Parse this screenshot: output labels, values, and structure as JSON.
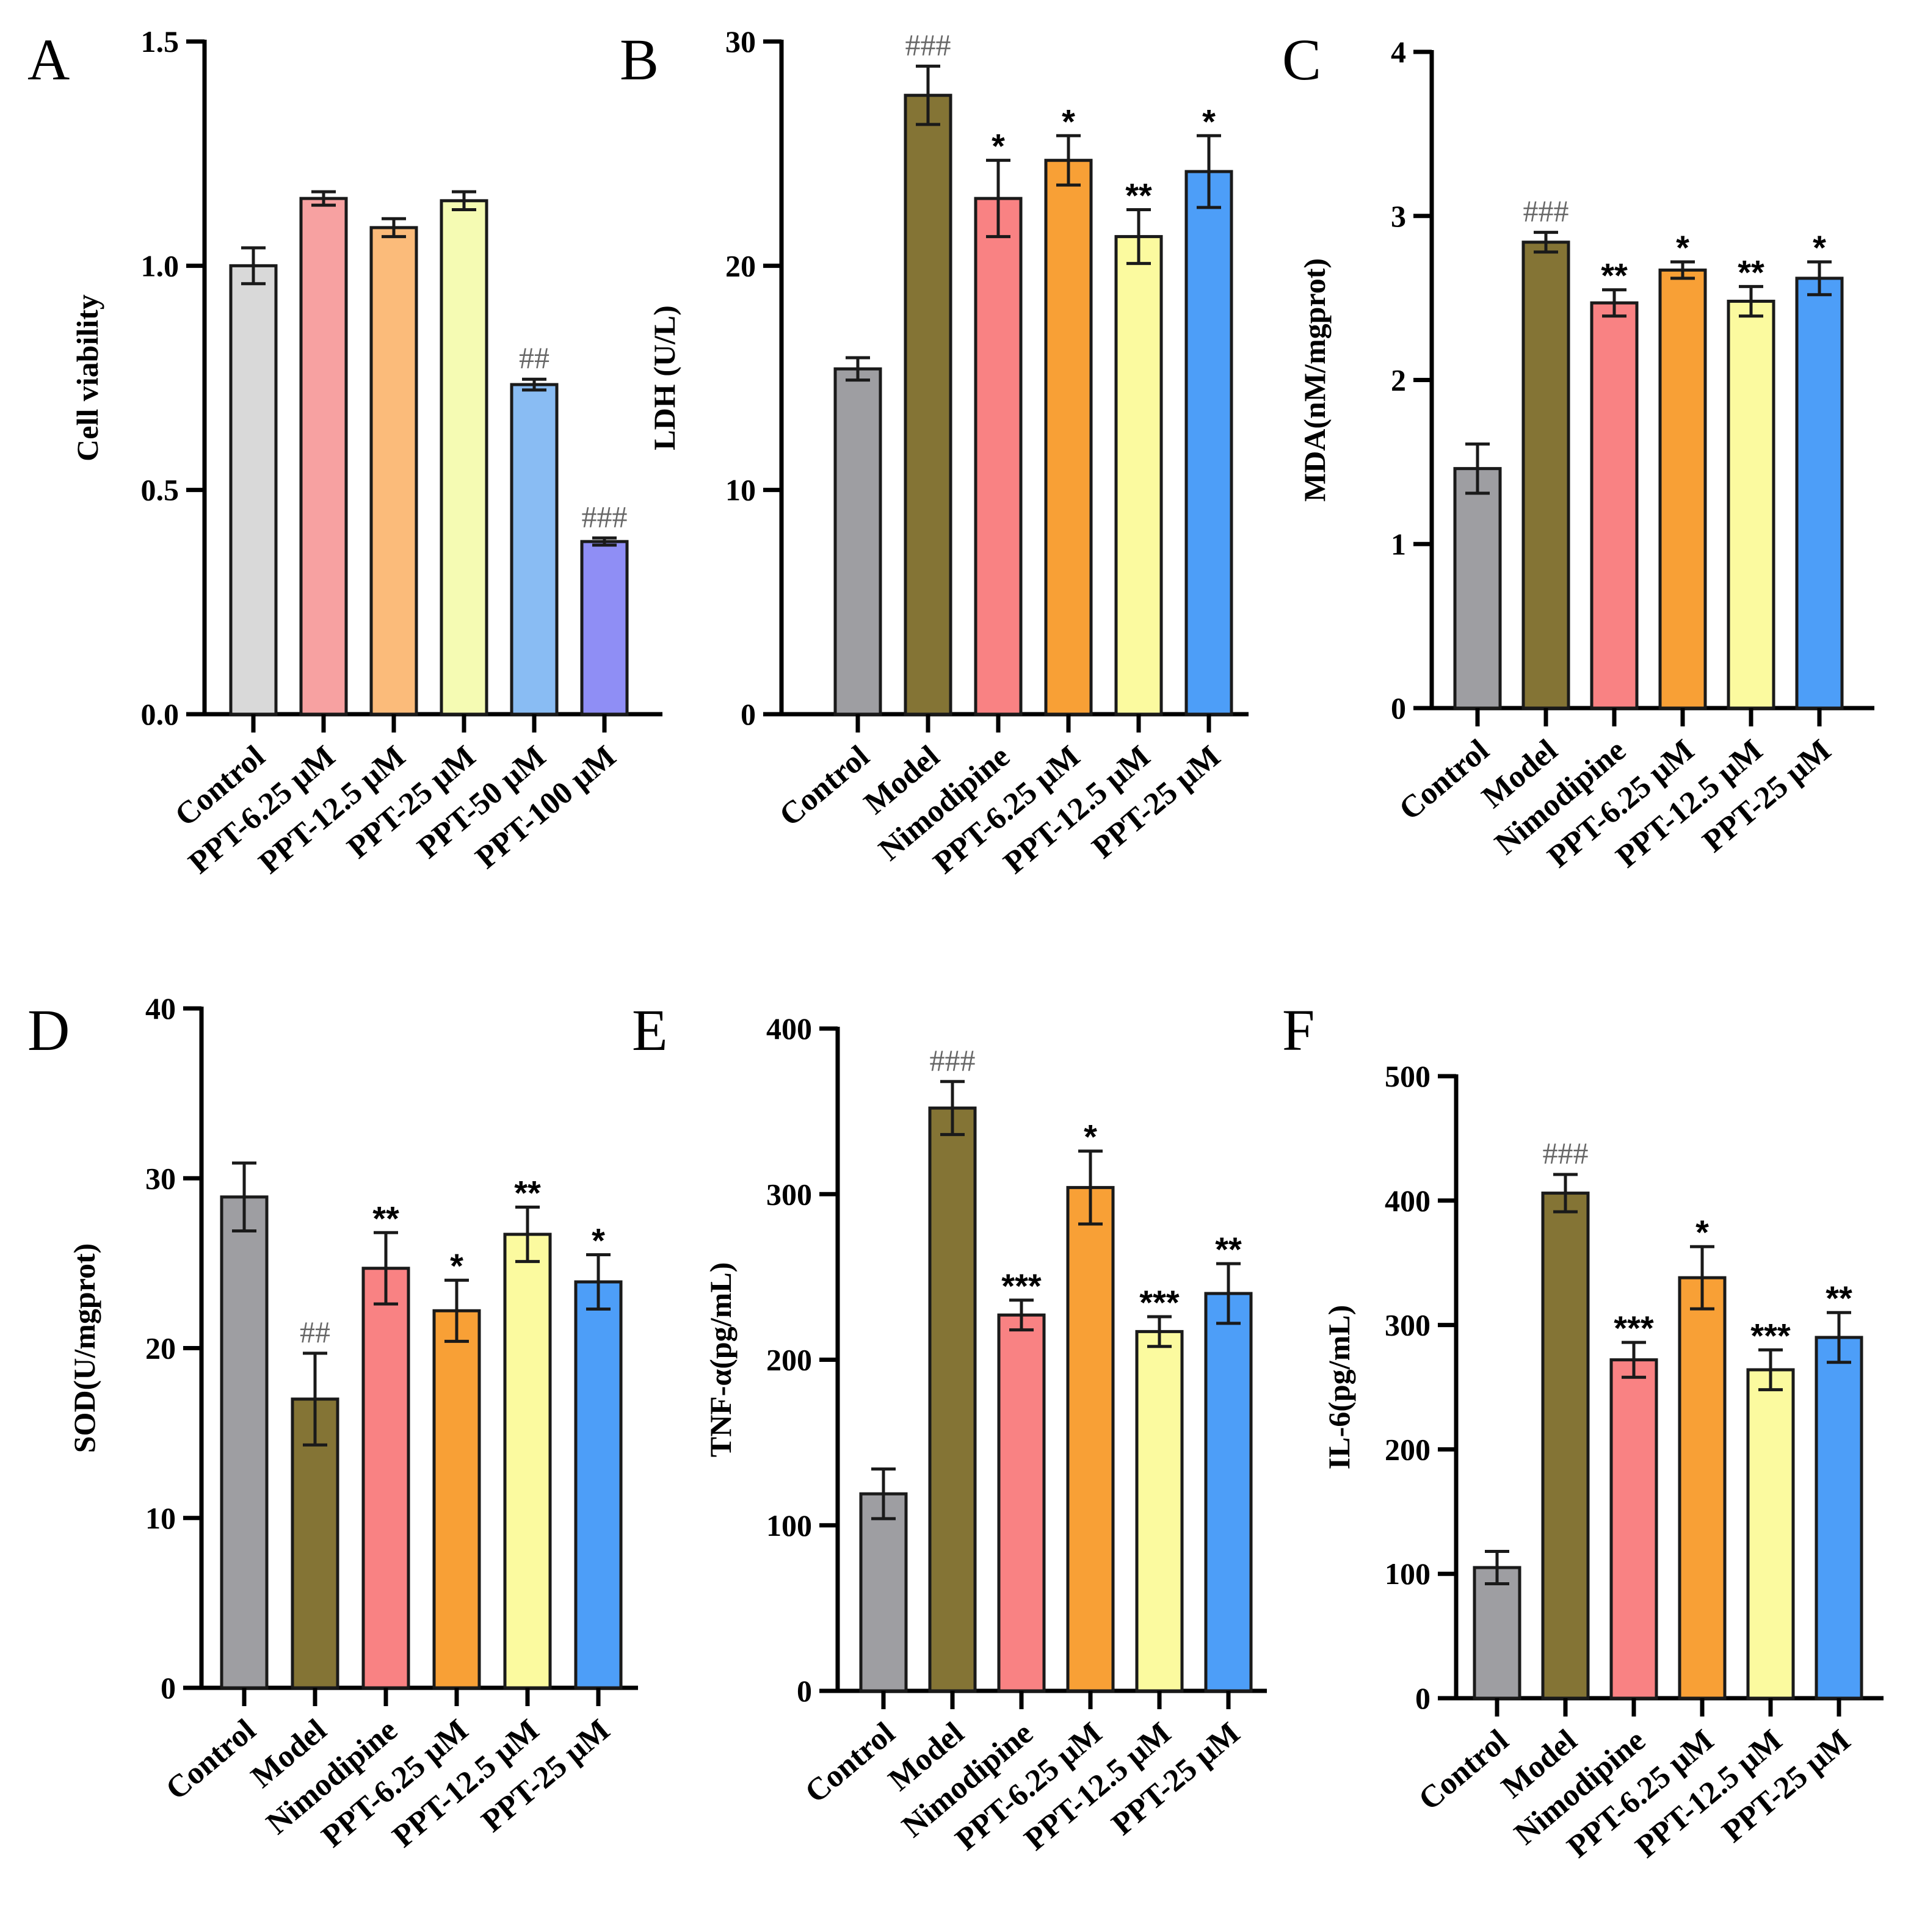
{
  "chart_data": [
    {
      "panel": "A",
      "type": "bar",
      "ylabel": "Cell viability",
      "ylim": [
        0,
        1.5
      ],
      "yticks": [
        "0.0",
        "0.5",
        "1.0",
        "1.5"
      ],
      "categories": [
        "Control",
        "PPT-6.25 μM",
        "PPT-12.5 μM",
        "PPT-25 μM",
        "PPT-50 μM",
        "PPT-100 μM"
      ],
      "values": [
        1.0,
        1.15,
        1.085,
        1.145,
        0.735,
        0.385
      ],
      "errors": [
        0.04,
        0.015,
        0.02,
        0.02,
        0.012,
        0.008
      ],
      "colors": [
        "#d9d9d9",
        "#f7a1a1",
        "#fbbb7a",
        "#f5fbb3",
        "#89bcf3",
        "#8f8ef5"
      ],
      "significance": [
        "",
        "",
        "",
        "",
        "##",
        "###"
      ]
    },
    {
      "panel": "B",
      "type": "bar",
      "ylabel": "LDH (U/L)",
      "ylim": [
        0,
        30
      ],
      "yticks": [
        "0",
        "10",
        "20",
        "30"
      ],
      "categories": [
        "Control",
        "Model",
        "Nimodipine",
        "PPT-6.25 μM",
        "PPT-12.5 μM",
        "PPT-25 μM"
      ],
      "values": [
        15.4,
        27.6,
        23.0,
        24.7,
        21.3,
        24.2
      ],
      "errors": [
        0.5,
        1.3,
        1.7,
        1.1,
        1.2,
        1.6
      ],
      "colors": [
        "#9e9ea2",
        "#847435",
        "#f98283",
        "#f8a036",
        "#fbfa9f",
        "#4d9ef8"
      ],
      "significance": [
        "",
        "###",
        "*",
        "*",
        "**",
        "*"
      ]
    },
    {
      "panel": "C",
      "type": "bar",
      "ylabel": "MDA(nM/mgprot)",
      "ylim": [
        0,
        4
      ],
      "yticks": [
        "0",
        "1",
        "2",
        "3",
        "4"
      ],
      "categories": [
        "Control",
        "Model",
        "Nimodipine",
        "PPT-6.25 μM",
        "PPT-12.5 μM",
        "PPT-25 μM"
      ],
      "values": [
        1.46,
        2.84,
        2.47,
        2.67,
        2.48,
        2.62
      ],
      "errors": [
        0.15,
        0.06,
        0.08,
        0.05,
        0.09,
        0.1
      ],
      "colors": [
        "#9e9ea2",
        "#847435",
        "#f98283",
        "#f8a036",
        "#fbfa9f",
        "#4d9ef8"
      ],
      "significance": [
        "",
        "###",
        "**",
        "*",
        "**",
        "*"
      ]
    },
    {
      "panel": "D",
      "type": "bar",
      "ylabel": "SOD(U/mgprot)",
      "ylim": [
        0,
        40
      ],
      "yticks": [
        "0",
        "10",
        "20",
        "30",
        "40"
      ],
      "categories": [
        "Control",
        "Model",
        "Nimodipine",
        "PPT-6.25 μM",
        "PPT-12.5 μM",
        "PPT-25 μM"
      ],
      "values": [
        28.9,
        17.0,
        24.7,
        22.2,
        26.7,
        23.9
      ],
      "errors": [
        2.0,
        2.7,
        2.1,
        1.8,
        1.6,
        1.6
      ],
      "colors": [
        "#9e9ea2",
        "#847435",
        "#f98283",
        "#f8a036",
        "#fbfa9f",
        "#4d9ef8"
      ],
      "significance": [
        "",
        "##",
        "**",
        "*",
        "**",
        "*"
      ]
    },
    {
      "panel": "E",
      "type": "bar",
      "ylabel": "TNF-α(pg/mL)",
      "ylim": [
        0,
        400
      ],
      "yticks": [
        "0",
        "100",
        "200",
        "300",
        "400"
      ],
      "categories": [
        "Control",
        "Model",
        "Nimodipine",
        "PPT-6.25 μM",
        "PPT-12.5 μM",
        "PPT-25 μM"
      ],
      "values": [
        119,
        352,
        227,
        304,
        217,
        240
      ],
      "errors": [
        15,
        16,
        9,
        22,
        9,
        18
      ],
      "colors": [
        "#9e9ea2",
        "#847435",
        "#f98283",
        "#f8a036",
        "#fbfa9f",
        "#4d9ef8"
      ],
      "significance": [
        "",
        "###",
        "***",
        "*",
        "***",
        "**"
      ]
    },
    {
      "panel": "F",
      "type": "bar",
      "ylabel": "IL-6(pg/mL)",
      "ylim": [
        0,
        500
      ],
      "yticks": [
        "0",
        "100",
        "200",
        "300",
        "400",
        "500"
      ],
      "categories": [
        "Control",
        "Model",
        "Nimodipine",
        "PPT-6.25 μM",
        "PPT-12.5 μM",
        "PPT-25 μM"
      ],
      "values": [
        105,
        406,
        272,
        338,
        264,
        290
      ],
      "errors": [
        13,
        15,
        14,
        25,
        16,
        20
      ],
      "colors": [
        "#9e9ea2",
        "#847435",
        "#f98283",
        "#f8a036",
        "#fbfa9f",
        "#4d9ef8"
      ],
      "significance": [
        "",
        "###",
        "***",
        "*",
        "***",
        "**"
      ]
    }
  ]
}
